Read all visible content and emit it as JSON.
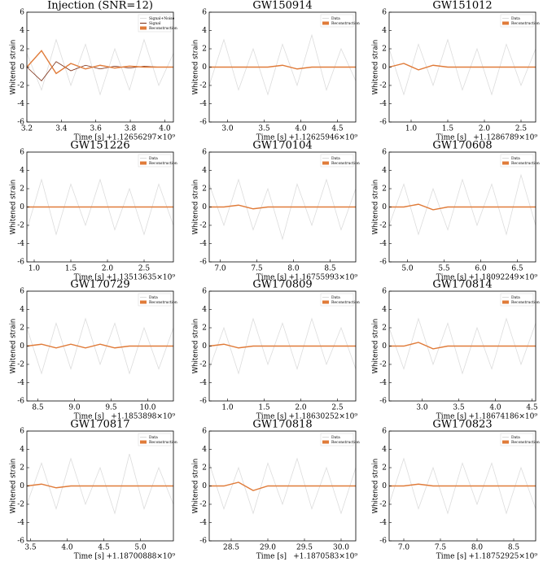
{
  "chart_data": [
    {
      "type": "line",
      "title": "Injection (SNR=12)",
      "xlabel": "Time [s]",
      "ylabel": "Whitened strain",
      "x_offset": "+1.12656297×10⁹",
      "xlim": [
        3.2,
        4.05
      ],
      "xticks": [
        3.2,
        3.4,
        3.6,
        3.8,
        {
          "value": 4,
          "label": "4.0"
        }
      ],
      "ylim": [
        -6,
        6
      ],
      "yticks": [
        -6,
        -4,
        -2,
        0,
        2,
        4,
        6
      ],
      "x": [
        3.2,
        3.285,
        3.37,
        3.455,
        3.54,
        3.625,
        3.71,
        3.795,
        3.88,
        3.965,
        4.05
      ],
      "series": [
        {
          "name": "Signal+Noise",
          "color": "#dcdcdc",
          "values": [
            1.5,
            -2.5,
            3,
            -2,
            2.5,
            -3,
            2,
            -2.5,
            3,
            -2,
            1.5
          ]
        },
        {
          "name": "Signal",
          "color": "#7a2a10",
          "values": [
            0,
            -1.5,
            0.6,
            -0.4,
            0.2,
            -0.2,
            0.1,
            -0.1,
            0.1,
            0,
            0
          ]
        },
        {
          "name": "Reconstruction",
          "color": "#e07b39",
          "marker": "patch",
          "values": [
            0,
            1.8,
            -0.7,
            0.4,
            -0.2,
            0.2,
            -0.1,
            0.1,
            0,
            0,
            0
          ]
        }
      ]
    },
    {
      "type": "line",
      "title": "GW150914",
      "xlabel": "Time [s]",
      "ylabel": "Whitened strain",
      "x_offset": "+1.12625946×10⁹",
      "xlim": [
        2.75,
        4.75
      ],
      "xticks": [
        {
          "value": 3,
          "label": "3.0"
        },
        3.5,
        {
          "value": 4,
          "label": "4.0"
        },
        4.5
      ],
      "ylim": [
        -6,
        6
      ],
      "yticks": [
        -6,
        -4,
        -2,
        0,
        2,
        4,
        6
      ],
      "x": [
        2.75,
        2.95,
        3.15,
        3.35,
        3.55,
        3.75,
        3.95,
        4.15,
        4.35,
        4.55,
        4.75
      ],
      "series": [
        {
          "name": "Data",
          "color": "#dcdcdc",
          "values": [
            -2,
            3,
            -2.5,
            2,
            -3,
            2.5,
            -2,
            3.5,
            -2.5,
            2,
            -1.5
          ]
        },
        {
          "name": "Reconstruction",
          "color": "#e07b39",
          "marker": "patch",
          "values": [
            0,
            0,
            0,
            0,
            0,
            0.2,
            -0.2,
            0,
            0,
            0,
            0
          ]
        }
      ]
    },
    {
      "type": "line",
      "title": "GW151012",
      "xlabel": "Time [s]",
      "ylabel": "Whitened strain",
      "x_offset": "+1.1286789×10⁹",
      "xlim": [
        0.7,
        2.7
      ],
      "xticks": [
        {
          "value": 1,
          "label": "1.0"
        },
        1.5,
        {
          "value": 2,
          "label": "2.0"
        },
        2.5
      ],
      "ylim": [
        -6,
        6
      ],
      "yticks": [
        -6,
        -4,
        -2,
        0,
        2,
        4,
        6
      ],
      "x": [
        0.7,
        0.9,
        1.1,
        1.3,
        1.5,
        1.7,
        1.9,
        2.1,
        2.3,
        2.5,
        2.7
      ],
      "series": [
        {
          "name": "Data",
          "color": "#dcdcdc",
          "values": [
            2,
            -3,
            2.5,
            -2,
            3,
            -2.5,
            2,
            -3,
            2.5,
            -2,
            2
          ]
        },
        {
          "name": "Reconstruction",
          "color": "#e07b39",
          "marker": "patch",
          "values": [
            0,
            0.4,
            -0.3,
            0.2,
            0,
            0,
            0,
            0,
            0,
            0,
            0
          ]
        }
      ]
    },
    {
      "type": "line",
      "title": "GW151226",
      "xlabel": "Time [s]",
      "ylabel": "Whitened strain",
      "x_offset": "+1.13513635×10⁹",
      "xlim": [
        0.9,
        2.9
      ],
      "xticks": [
        {
          "value": 1,
          "label": "1.0"
        },
        1.5,
        {
          "value": 2,
          "label": "2.0"
        },
        2.5
      ],
      "ylim": [
        -6,
        6
      ],
      "yticks": [
        -6,
        -4,
        -2,
        0,
        2,
        4,
        6
      ],
      "x": [
        0.9,
        1.1,
        1.3,
        1.5,
        1.7,
        1.9,
        2.1,
        2.3,
        2.5,
        2.7,
        2.9
      ],
      "series": [
        {
          "name": "Data",
          "color": "#dcdcdc",
          "values": [
            -2.5,
            3,
            -3,
            2.5,
            -2,
            3,
            -2.5,
            2,
            -3,
            2.5,
            -2
          ]
        },
        {
          "name": "Reconstruction",
          "color": "#e07b39",
          "marker": "patch",
          "values": [
            0,
            0,
            0,
            0,
            0,
            0,
            0,
            0,
            0,
            0,
            0
          ]
        }
      ]
    },
    {
      "type": "line",
      "title": "GW170104",
      "xlabel": "Time [s]",
      "ylabel": "Whitened strain",
      "x_offset": "+1.16755993×10⁹",
      "xlim": [
        6.85,
        8.85
      ],
      "xticks": [
        {
          "value": 7,
          "label": "7.0"
        },
        7.5,
        {
          "value": 8,
          "label": "8.0"
        },
        8.5
      ],
      "ylim": [
        -6,
        6
      ],
      "yticks": [
        -6,
        -4,
        -2,
        0,
        2,
        4,
        6
      ],
      "x": [
        6.85,
        7.05,
        7.25,
        7.45,
        7.65,
        7.85,
        8.05,
        8.25,
        8.45,
        8.65,
        8.85
      ],
      "series": [
        {
          "name": "Data",
          "color": "#dcdcdc",
          "values": [
            2.5,
            -2,
            3,
            -2.5,
            2,
            -3.5,
            2.5,
            -2,
            3,
            -2.5,
            2
          ]
        },
        {
          "name": "Reconstruction",
          "color": "#e07b39",
          "marker": "patch",
          "values": [
            0,
            0,
            0.2,
            -0.2,
            0,
            0,
            0,
            0,
            0,
            0,
            0
          ]
        }
      ]
    },
    {
      "type": "line",
      "title": "GW170608",
      "xlabel": "Time [s]",
      "ylabel": "Whitened strain",
      "x_offset": "+1.18092249×10⁹",
      "xlim": [
        4.75,
        6.75
      ],
      "xticks": [
        {
          "value": 5,
          "label": "5.0"
        },
        5.5,
        {
          "value": 6,
          "label": "6.0"
        },
        6.5
      ],
      "ylim": [
        -6,
        6
      ],
      "yticks": [
        -6,
        -4,
        -2,
        0,
        2,
        4,
        6
      ],
      "x": [
        4.75,
        4.95,
        5.15,
        5.35,
        5.55,
        5.75,
        5.95,
        6.15,
        6.35,
        6.55,
        6.75
      ],
      "series": [
        {
          "name": "Data",
          "color": "#dcdcdc",
          "values": [
            -2,
            2.5,
            -3,
            2,
            -2.5,
            3,
            -2,
            2.5,
            -3,
            3.5,
            -2
          ]
        },
        {
          "name": "Reconstruction",
          "color": "#e07b39",
          "marker": "patch",
          "values": [
            0,
            0,
            0.3,
            -0.3,
            0,
            0,
            0,
            0,
            0,
            0,
            0
          ]
        }
      ]
    },
    {
      "type": "line",
      "title": "GW170729",
      "xlabel": "Time [s]",
      "ylabel": "Whitened strain",
      "x_offset": "+1.1853898×10⁹",
      "xlim": [
        8.35,
        10.35
      ],
      "xticks": [
        8.5,
        {
          "value": 9,
          "label": "9.0"
        },
        9.5,
        {
          "value": 10,
          "label": "10.0"
        }
      ],
      "ylim": [
        -6,
        6
      ],
      "yticks": [
        -6,
        -4,
        -2,
        0,
        2,
        4,
        6
      ],
      "x": [
        8.35,
        8.55,
        8.75,
        8.95,
        9.15,
        9.35,
        9.55,
        9.75,
        9.95,
        10.15,
        10.35
      ],
      "series": [
        {
          "name": "Data",
          "color": "#dcdcdc",
          "values": [
            2,
            -3,
            2.5,
            -2.5,
            3,
            -2,
            2.5,
            -3,
            2,
            -2.5,
            2
          ]
        },
        {
          "name": "Reconstruction",
          "color": "#e07b39",
          "marker": "patch",
          "values": [
            0,
            0.2,
            -0.2,
            0.2,
            -0.2,
            0.2,
            -0.2,
            0,
            0,
            0,
            0
          ]
        }
      ]
    },
    {
      "type": "line",
      "title": "GW170809",
      "xlabel": "Time [s]",
      "ylabel": "Whitened strain",
      "x_offset": "+1.18630252×10⁹",
      "xlim": [
        0.75,
        2.75
      ],
      "xticks": [
        {
          "value": 1,
          "label": "1.0"
        },
        1.5,
        {
          "value": 2,
          "label": "2.0"
        },
        2.5
      ],
      "ylim": [
        -6,
        6
      ],
      "yticks": [
        -6,
        -4,
        -2,
        0,
        2,
        4,
        6
      ],
      "x": [
        0.75,
        0.95,
        1.15,
        1.35,
        1.55,
        1.75,
        1.95,
        2.15,
        2.35,
        2.55,
        2.75
      ],
      "series": [
        {
          "name": "Data",
          "color": "#dcdcdc",
          "values": [
            -2.5,
            2,
            -3,
            3,
            -2,
            2.5,
            -2.5,
            3,
            -2,
            2,
            -2.5
          ]
        },
        {
          "name": "Reconstruction",
          "color": "#e07b39",
          "marker": "patch",
          "values": [
            0,
            0.2,
            -0.2,
            0,
            0,
            0,
            0,
            0,
            0,
            0,
            0
          ]
        }
      ]
    },
    {
      "type": "line",
      "title": "GW170814",
      "xlabel": "Time [s]",
      "ylabel": "Whitened strain",
      "x_offset": "+1.18674186×10⁹",
      "xlim": [
        2.55,
        4.55
      ],
      "xticks": [
        {
          "value": 3,
          "label": "3.0"
        },
        3.5,
        {
          "value": 4,
          "label": "4.0"
        },
        4.5
      ],
      "ylim": [
        -6,
        6
      ],
      "yticks": [
        -6,
        -4,
        -2,
        0,
        2,
        4,
        6
      ],
      "x": [
        2.55,
        2.75,
        2.95,
        3.15,
        3.35,
        3.55,
        3.75,
        3.95,
        4.15,
        4.35,
        4.55
      ],
      "series": [
        {
          "name": "Data",
          "color": "#dcdcdc",
          "values": [
            2,
            -2.5,
            3,
            -2,
            2.5,
            -3,
            2,
            -2.5,
            3,
            -2,
            2.5
          ]
        },
        {
          "name": "Reconstruction",
          "color": "#e07b39",
          "marker": "patch",
          "values": [
            0,
            0,
            0.4,
            -0.3,
            0,
            0,
            0,
            0,
            0,
            0,
            0
          ]
        }
      ]
    },
    {
      "type": "line",
      "title": "GW170817",
      "xlabel": "Time [s]",
      "ylabel": "Whitened strain",
      "x_offset": "+1.18700888×10⁹",
      "xlim": [
        3.45,
        5.45
      ],
      "xticks": [
        3.5,
        {
          "value": 4,
          "label": "4.0"
        },
        4.5,
        {
          "value": 5,
          "label": "5.0"
        }
      ],
      "ylim": [
        -6,
        6
      ],
      "yticks": [
        -6,
        -4,
        -2,
        0,
        2,
        4,
        6
      ],
      "x": [
        3.45,
        3.65,
        3.85,
        4.05,
        4.25,
        4.45,
        4.65,
        4.85,
        5.05,
        5.25,
        5.45
      ],
      "series": [
        {
          "name": "Data",
          "color": "#dcdcdc",
          "values": [
            -2,
            2.5,
            -2.5,
            3,
            -2,
            2,
            -3,
            3.5,
            -2.5,
            2,
            -2
          ]
        },
        {
          "name": "Reconstruction",
          "color": "#e07b39",
          "marker": "patch",
          "values": [
            0,
            0.2,
            -0.2,
            0,
            0,
            0,
            0,
            0,
            0,
            0,
            0
          ]
        }
      ]
    },
    {
      "type": "line",
      "title": "GW170818",
      "xlabel": "Time [s]",
      "ylabel": "Whitened strain",
      "x_offset": "+1.1870583×10⁹",
      "xlim": [
        28.2,
        30.2
      ],
      "xticks": [
        28.5,
        {
          "value": 29,
          "label": "29.0"
        },
        29.5,
        {
          "value": 30,
          "label": "30.0"
        }
      ],
      "ylim": [
        -6,
        6
      ],
      "yticks": [
        -6,
        -4,
        -2,
        0,
        2,
        4,
        6
      ],
      "x": [
        28.2,
        28.4,
        28.6,
        28.8,
        29.0,
        29.2,
        29.4,
        29.6,
        29.8,
        30.0,
        30.2
      ],
      "series": [
        {
          "name": "Data",
          "color": "#dcdcdc",
          "values": [
            2.5,
            -2.5,
            2,
            -3,
            2.5,
            -2,
            3,
            -2.5,
            2,
            -3,
            2
          ]
        },
        {
          "name": "Reconstruction",
          "color": "#e07b39",
          "marker": "patch",
          "values": [
            0,
            0,
            0.4,
            -0.5,
            0,
            0,
            0,
            0,
            0,
            0,
            0
          ]
        }
      ]
    },
    {
      "type": "line",
      "title": "GW170823",
      "xlabel": "Time [s]",
      "ylabel": "Whitened strain",
      "x_offset": "+1.18752925×10⁹",
      "xlim": [
        6.8,
        8.8
      ],
      "xticks": [
        {
          "value": 7,
          "label": "7.0"
        },
        7.5,
        {
          "value": 8,
          "label": "8.0"
        },
        8.5
      ],
      "ylim": [
        -6,
        6
      ],
      "yticks": [
        -6,
        -4,
        -2,
        0,
        2,
        4,
        6
      ],
      "x": [
        6.8,
        7.0,
        7.2,
        7.4,
        7.6,
        7.8,
        8.0,
        8.2,
        8.4,
        8.6,
        8.8
      ],
      "series": [
        {
          "name": "Data",
          "color": "#dcdcdc",
          "values": [
            -2,
            3,
            -2.5,
            2,
            -3,
            2.5,
            -2,
            2.5,
            -3,
            2,
            -2.5
          ]
        },
        {
          "name": "Reconstruction",
          "color": "#e07b39",
          "marker": "patch",
          "values": [
            0,
            0,
            0.2,
            0,
            0,
            0,
            0,
            0,
            0,
            0,
            0
          ]
        }
      ]
    }
  ]
}
